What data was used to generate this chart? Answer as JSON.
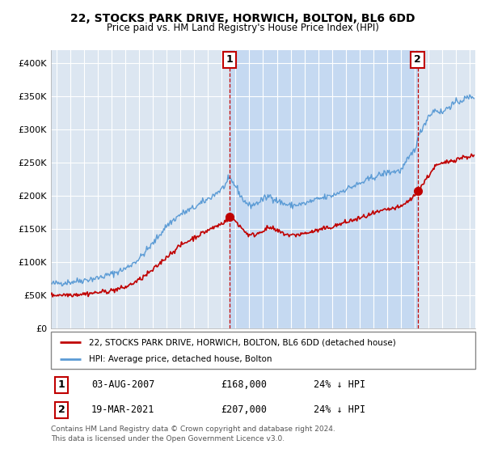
{
  "title": "22, STOCKS PARK DRIVE, HORWICH, BOLTON, BL6 6DD",
  "subtitle": "Price paid vs. HM Land Registry's House Price Index (HPI)",
  "ylabel_ticks": [
    "£0",
    "£50K",
    "£100K",
    "£150K",
    "£200K",
    "£250K",
    "£300K",
    "£350K",
    "£400K"
  ],
  "ytick_values": [
    0,
    50000,
    100000,
    150000,
    200000,
    250000,
    300000,
    350000,
    400000
  ],
  "ylim": [
    0,
    420000
  ],
  "xlim_start": 1994.6,
  "xlim_end": 2025.4,
  "hpi_color": "#5b9bd5",
  "price_color": "#c00000",
  "plot_bg_color": "#dce6f1",
  "shade_color": "#c5d9f1",
  "marker1_date": 2007.58,
  "marker1_price": 168000,
  "marker2_date": 2021.21,
  "marker2_price": 207000,
  "legend_line1": "22, STOCKS PARK DRIVE, HORWICH, BOLTON, BL6 6DD (detached house)",
  "legend_line2": "HPI: Average price, detached house, Bolton",
  "footnote": "Contains HM Land Registry data © Crown copyright and database right 2024.\nThis data is licensed under the Open Government Licence v3.0.",
  "background_color": "#ffffff",
  "grid_color": "#ffffff"
}
